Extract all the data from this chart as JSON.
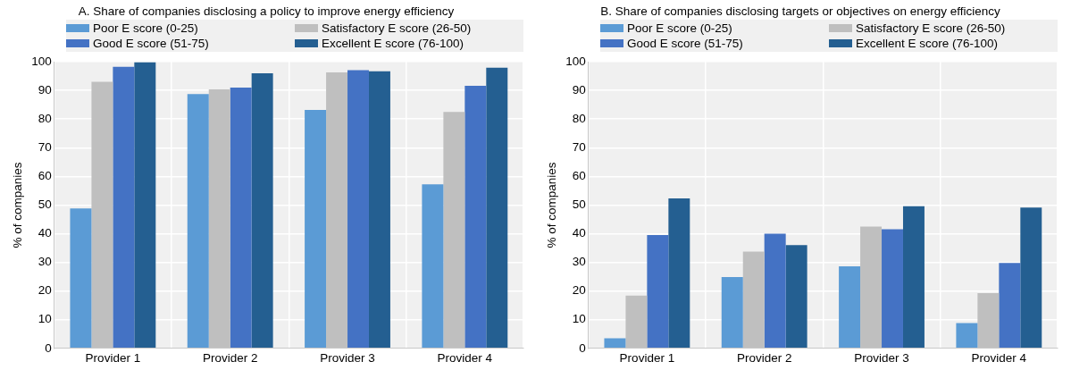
{
  "chart_data": [
    {
      "type": "bar",
      "title": "A. Share of companies disclosing a policy to improve energy efficiency",
      "ylabel": "% of companies",
      "categories": [
        "Provider 1",
        "Provider 2",
        "Provider 3",
        "Provider 4"
      ],
      "series": [
        {
          "name": "Poor E score (0-25)",
          "color": "#5b9bd5",
          "values": [
            48.8,
            88.7,
            83.2,
            57.2
          ]
        },
        {
          "name": "Satisfactory E score (26-50)",
          "color": "#bfbfbf",
          "values": [
            93,
            90.4,
            96.3,
            82.5
          ]
        },
        {
          "name": "Good E score (51-75)",
          "color": "#4472c4",
          "values": [
            98.2,
            91,
            97.1,
            91.6
          ]
        },
        {
          "name": "Excellent E score (76-100)",
          "color": "#245f91",
          "values": [
            99.8,
            96,
            96.7,
            97.9
          ]
        }
      ],
      "ylim": [
        0,
        100
      ],
      "yticks": [
        0,
        10,
        20,
        30,
        40,
        50,
        60,
        70,
        80,
        90,
        100
      ],
      "grid": true,
      "legend": "top"
    },
    {
      "type": "bar",
      "title": "B. Share of companies disclosing targets or objectives on energy efficiency",
      "ylabel": "% of companies",
      "categories": [
        "Provider 1",
        "Provider 2",
        "Provider 3",
        "Provider 4"
      ],
      "series": [
        {
          "name": "Poor E score (0-25)",
          "color": "#5b9bd5",
          "values": [
            3.5,
            24.9,
            28.6,
            8.8
          ]
        },
        {
          "name": "Satisfactory E score (26-50)",
          "color": "#bfbfbf",
          "values": [
            18.4,
            33.8,
            42.5,
            19.3
          ]
        },
        {
          "name": "Good E score (51-75)",
          "color": "#4472c4",
          "values": [
            39.5,
            40,
            41.6,
            29.8
          ]
        },
        {
          "name": "Excellent E score (76-100)",
          "color": "#245f91",
          "values": [
            52.3,
            36,
            49.6,
            49.1
          ]
        }
      ],
      "ylim": [
        0,
        100
      ],
      "yticks": [
        0,
        10,
        20,
        30,
        40,
        50,
        60,
        70,
        80,
        90,
        100
      ],
      "grid": true,
      "legend": "top"
    }
  ]
}
